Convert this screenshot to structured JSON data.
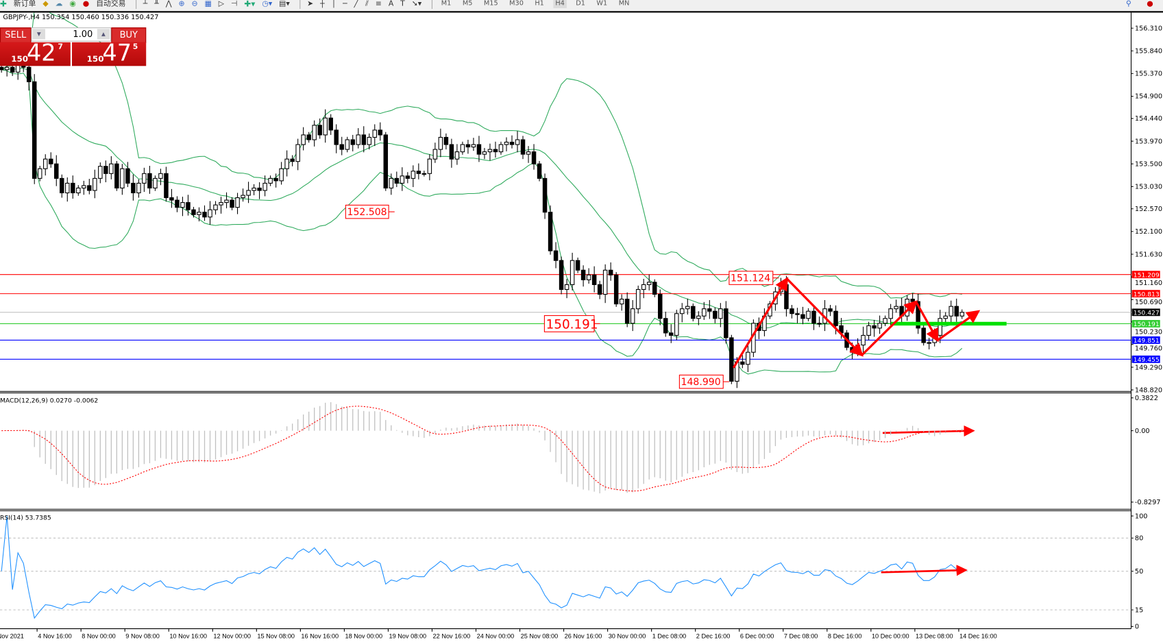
{
  "toolbar": {
    "new_order": "新订单",
    "auto_trading": "自动交易",
    "timeframes": [
      "M1",
      "M5",
      "M15",
      "M30",
      "H1",
      "H4",
      "D1",
      "W1",
      "MN"
    ],
    "active_timeframe": "H4"
  },
  "chart_header": "GBPJPY-,H4  150.354 150.460 150.336 150.427",
  "trade_panel": {
    "sell_label": "SELL",
    "buy_label": "BUY",
    "lot": "1.00",
    "sell_price": {
      "prefix": "150",
      "big": "42",
      "sup": "7"
    },
    "buy_price": {
      "prefix": "150",
      "big": "47",
      "sup": "5"
    }
  },
  "chart_data": {
    "type": "candlestick",
    "symbol": "GBPJPY-",
    "timeframe": "H4",
    "ohlc_last": {
      "open": 150.354,
      "high": 150.46,
      "low": 150.336,
      "close": 150.427
    },
    "closes": [
      155.45,
      155.5,
      155.4,
      155.55,
      155.5,
      155.2,
      153.2,
      153.4,
      153.6,
      153.5,
      153.2,
      152.9,
      153.1,
      152.9,
      153.0,
      153.05,
      152.95,
      153.2,
      153.45,
      153.3,
      153.5,
      153.0,
      153.4,
      153.1,
      152.9,
      153.1,
      153.3,
      153.0,
      153.2,
      153.3,
      152.8,
      152.75,
      152.6,
      152.7,
      152.55,
      152.45,
      152.5,
      152.4,
      152.55,
      152.65,
      152.7,
      152.75,
      152.6,
      152.8,
      152.85,
      152.95,
      153.0,
      152.95,
      153.1,
      153.2,
      153.15,
      153.4,
      153.6,
      153.55,
      153.9,
      154.1,
      154.0,
      154.3,
      154.1,
      154.45,
      154.2,
      153.9,
      153.8,
      154.0,
      153.9,
      154.1,
      153.9,
      154.05,
      154.2,
      154.1,
      153.0,
      153.2,
      153.1,
      153.25,
      153.2,
      153.35,
      153.3,
      153.3,
      153.6,
      153.8,
      154.05,
      153.9,
      153.6,
      153.75,
      153.9,
      153.85,
      153.9,
      153.7,
      153.75,
      153.8,
      153.75,
      153.9,
      153.95,
      153.9,
      154.0,
      153.7,
      153.75,
      153.5,
      153.2,
      152.5,
      151.7,
      151.5,
      150.9,
      151.0,
      151.5,
      151.3,
      151.1,
      151.2,
      151.0,
      150.8,
      151.3,
      151.2,
      150.6,
      150.7,
      150.2,
      150.5,
      150.9,
      151.0,
      151.05,
      150.8,
      150.3,
      150.0,
      149.95,
      150.4,
      150.5,
      150.55,
      150.3,
      150.35,
      150.5,
      150.45,
      150.3,
      150.5,
      149.9,
      149.0,
      149.4,
      149.35,
      149.6,
      150.2,
      150.05,
      150.35,
      150.6,
      150.85,
      151.0,
      150.5,
      150.4,
      150.38,
      150.3,
      150.45,
      150.2,
      150.2,
      150.5,
      150.45,
      150.15,
      150.0,
      149.7,
      149.6,
      149.75,
      149.95,
      150.15,
      150.1,
      150.2,
      150.3,
      150.5,
      150.55,
      150.35,
      150.7,
      150.65,
      150.1,
      149.8,
      149.8,
      149.95,
      150.3,
      150.35,
      150.55,
      150.35,
      150.427
    ],
    "price_ticks": [
      "156.310",
      "155.840",
      "155.370",
      "154.900",
      "154.440",
      "153.970",
      "153.500",
      "153.030",
      "152.570",
      "152.100",
      "151.630",
      "151.160",
      "150.690",
      "150.230",
      "149.760",
      "149.290",
      "148.820"
    ],
    "date_ticks": [
      "Nov 2021",
      "4 Nov 16:00",
      "8 Nov 00:00",
      "9 Nov 08:00",
      "10 Nov 16:00",
      "12 Nov 00:00",
      "15 Nov 08:00",
      "16 Nov 16:00",
      "18 Nov 00:00",
      "19 Nov 08:00",
      "22 Nov 16:00",
      "24 Nov 00:00",
      "25 Nov 08:00",
      "26 Nov 16:00",
      "30 Nov 00:00",
      "1 Dec 08:00",
      "2 Dec 16:00",
      "6 Dec 00:00",
      "7 Dec 08:00",
      "8 Dec 16:00",
      "10 Dec 00:00",
      "13 Dec 08:00",
      "14 Dec 16:00"
    ],
    "indicators": {
      "bollinger": {
        "color": "#2eaa5c"
      }
    },
    "hlines": [
      {
        "price": 151.209,
        "label": "151.209",
        "color": "#ff0000"
      },
      {
        "price": 150.813,
        "label": "150.813",
        "color": "#ff0000"
      },
      {
        "price": 150.427,
        "label": "150.427",
        "color": "#c0c0c0",
        "tag_color": "#000000"
      },
      {
        "price": 150.191,
        "label": "150.191",
        "color": "#32cd32"
      },
      {
        "price": 149.851,
        "label": "149.851",
        "color": "#0000ff"
      },
      {
        "price": 149.455,
        "label": "149.455",
        "color": "#0000ff"
      }
    ],
    "annotations": [
      {
        "text": "152.508",
        "price": 152.508
      },
      {
        "text": "150.191",
        "price": 150.191
      },
      {
        "text": "148.990",
        "price": 148.99
      },
      {
        "text": "151.124",
        "price": 151.124
      }
    ],
    "macd": {
      "label": "MACD(12,26,9) 0.0270 -0.0062",
      "ticks": [
        "0.3822",
        "0.00",
        "-0.8297"
      ],
      "ylim": [
        -0.8297,
        0.3822
      ]
    },
    "rsi": {
      "label": "RSI(14) 53.7385",
      "ticks": [
        "100",
        "80",
        "50",
        "15",
        "0"
      ],
      "levels": [
        80,
        50,
        15
      ],
      "ylim": [
        0,
        100
      ]
    }
  }
}
